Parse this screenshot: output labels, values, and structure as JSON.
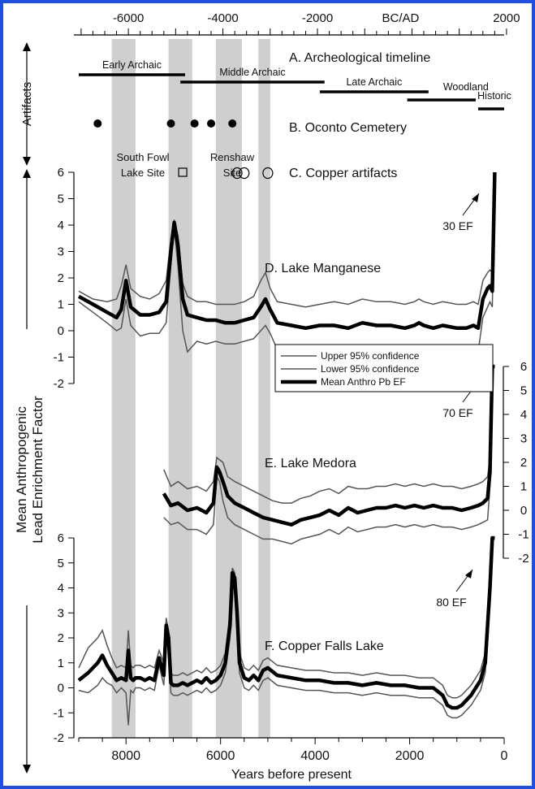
{
  "colors": {
    "border": "#1f4fe0",
    "band": "#cfcfcf",
    "ci_line": "#555555",
    "mean_line": "#000000"
  },
  "chart_data": {
    "type": "line",
    "x_axis_bottom": {
      "label": "Years before present",
      "range": [
        9000,
        0
      ],
      "ticks": [
        8000,
        6000,
        4000,
        2000,
        0
      ]
    },
    "x_axis_top": {
      "label": "BC/AD",
      "ticks": [
        -6000,
        -4000,
        -2000,
        2000
      ]
    },
    "y_axis_label_lines": [
      "Mean Anthropogenic",
      "Lead Enrichment Factor"
    ],
    "side_labels": {
      "artifacts": "Artifacts"
    },
    "shaded_bands_bp": [
      [
        8300,
        7800
      ],
      [
        7100,
        6600
      ],
      [
        6100,
        5550
      ],
      [
        5200,
        4950
      ]
    ],
    "panel_a": {
      "title": "A. Archeological timeline",
      "periods": [
        {
          "label": "Early Archaic",
          "start_bp": 9000,
          "end_bp": 6750
        },
        {
          "label": "Middle Archaic",
          "start_bp": 6850,
          "end_bp": 3800
        },
        {
          "label": "Late Archaic",
          "start_bp": 3900,
          "end_bp": 1600
        },
        {
          "label": "Woodland",
          "start_bp": 2050,
          "end_bp": 600
        },
        {
          "label": "Historic",
          "start_bp": 550,
          "end_bp": 0
        }
      ]
    },
    "panel_b": {
      "title": "B. Oconto Cemetery",
      "dates_bp": [
        8600,
        7050,
        6550,
        6200,
        5750
      ]
    },
    "panel_c": {
      "title": "C. Copper artifacts",
      "sites": [
        {
          "label_lines": [
            "South Fowl",
            "Lake Site"
          ],
          "marker": "square",
          "dates_bp": [
            6800
          ]
        },
        {
          "label_lines": [
            "Renshaw",
            "Site"
          ],
          "marker": "circle",
          "dates_bp": [
            5650,
            5500,
            5000
          ]
        }
      ]
    },
    "legend": {
      "entries": [
        "Upper 95% confidence",
        "Lower 95% confidence",
        "Mean Anthro Pb EF"
      ]
    },
    "panels": [
      {
        "id": "D",
        "title": "D. Lake Manganese",
        "annotation": "30 EF",
        "ylim": [
          -2,
          6
        ],
        "yticks": [
          6,
          5,
          4,
          3,
          2,
          1,
          0,
          -1,
          -2
        ],
        "axis_side": "left",
        "x": [
          9000,
          8700,
          8400,
          8200,
          8100,
          8000,
          7900,
          7700,
          7500,
          7300,
          7150,
          7050,
          6980,
          6900,
          6800,
          6700,
          6500,
          6300,
          6100,
          5900,
          5700,
          5500,
          5300,
          5150,
          5050,
          4950,
          4800,
          4500,
          4200,
          3900,
          3600,
          3300,
          3000,
          2700,
          2400,
          2100,
          1900,
          1800,
          1700,
          1500,
          1300,
          1000,
          800,
          650,
          550,
          450,
          350,
          300,
          250,
          200
        ],
        "mean": [
          1.3,
          1.0,
          0.7,
          0.5,
          0.8,
          1.9,
          0.9,
          0.6,
          0.6,
          0.7,
          1.1,
          3.0,
          4.1,
          3.2,
          1.2,
          0.6,
          0.5,
          0.4,
          0.4,
          0.3,
          0.3,
          0.4,
          0.5,
          0.9,
          1.2,
          0.8,
          0.3,
          0.2,
          0.1,
          0.2,
          0.2,
          0.1,
          0.3,
          0.2,
          0.2,
          0.1,
          0.2,
          0.3,
          0.2,
          0.1,
          0.2,
          0.1,
          0.1,
          0.2,
          0.1,
          1.2,
          1.6,
          1.7,
          1.5,
          6.0
        ],
        "upper": [
          1.5,
          1.2,
          1.1,
          1.2,
          1.7,
          2.5,
          1.6,
          1.3,
          1.2,
          1.4,
          1.9,
          3.5,
          4.2,
          3.6,
          1.8,
          1.3,
          1.1,
          1.1,
          1.0,
          1.0,
          1.0,
          1.1,
          1.3,
          1.9,
          2.2,
          1.6,
          1.1,
          1.0,
          0.9,
          1.0,
          1.1,
          1.0,
          1.2,
          1.1,
          1.1,
          1.0,
          1.1,
          1.2,
          1.1,
          1.0,
          1.1,
          1.0,
          1.0,
          1.1,
          1.0,
          1.9,
          2.2,
          2.3,
          2.2,
          6.0
        ],
        "lower": [
          1.1,
          0.7,
          0.3,
          0.0,
          0.1,
          1.2,
          0.2,
          -0.2,
          -0.1,
          -0.1,
          0.3,
          2.5,
          3.9,
          2.4,
          0.0,
          -0.8,
          -0.4,
          -0.5,
          -0.4,
          -0.5,
          -0.5,
          -0.4,
          -0.3,
          0.0,
          0.2,
          -0.1,
          -0.7,
          -0.8,
          -0.9,
          -0.8,
          -0.7,
          -0.9,
          -0.6,
          -0.8,
          -0.7,
          -0.8,
          -0.7,
          -0.6,
          -0.7,
          -0.8,
          -0.7,
          -0.8,
          -0.8,
          -0.7,
          -0.8,
          0.5,
          0.9,
          1.1,
          0.9,
          6.0
        ]
      },
      {
        "id": "E",
        "title": "E. Lake Medora",
        "annotation": "70 EF",
        "ylim": [
          -2,
          6
        ],
        "yticks": [
          6,
          5,
          4,
          3,
          2,
          1,
          0,
          -1,
          -2
        ],
        "axis_side": "right",
        "x": [
          7200,
          7050,
          6900,
          6700,
          6500,
          6300,
          6150,
          6080,
          6020,
          5950,
          5850,
          5700,
          5500,
          5300,
          5100,
          4900,
          4700,
          4500,
          4300,
          4100,
          3900,
          3700,
          3500,
          3300,
          3100,
          2900,
          2700,
          2500,
          2300,
          2100,
          1900,
          1700,
          1500,
          1300,
          1100,
          900,
          700,
          550,
          450,
          350,
          300,
          250,
          200
        ],
        "mean": [
          0.7,
          0.2,
          0.3,
          0.0,
          0.1,
          -0.1,
          0.3,
          1.8,
          1.6,
          1.2,
          0.6,
          0.3,
          0.1,
          -0.1,
          -0.3,
          -0.4,
          -0.5,
          -0.6,
          -0.4,
          -0.3,
          -0.2,
          0.0,
          -0.2,
          0.1,
          -0.1,
          0.0,
          0.1,
          0.1,
          0.2,
          0.1,
          0.2,
          0.1,
          0.2,
          0.1,
          0.1,
          0.0,
          0.1,
          0.2,
          0.3,
          0.5,
          1.6,
          6.0,
          6.0
        ],
        "upper": [
          1.7,
          1.0,
          1.2,
          0.9,
          1.0,
          0.8,
          1.2,
          2.2,
          2.1,
          2.0,
          1.4,
          1.2,
          1.0,
          0.8,
          0.6,
          0.4,
          0.3,
          0.3,
          0.5,
          0.6,
          0.8,
          0.9,
          0.7,
          1.0,
          0.9,
          0.9,
          1.0,
          1.0,
          1.1,
          1.0,
          1.1,
          1.0,
          1.1,
          1.0,
          1.0,
          0.9,
          1.0,
          1.1,
          1.2,
          1.4,
          2.2,
          6.0,
          6.0
        ],
        "lower": [
          -0.3,
          -0.6,
          -0.5,
          -0.8,
          -0.8,
          -1.0,
          -0.6,
          1.4,
          1.2,
          0.4,
          -0.3,
          -0.6,
          -0.8,
          -1.0,
          -1.2,
          -1.2,
          -1.3,
          -1.4,
          -1.2,
          -1.1,
          -1.0,
          -0.8,
          -1.0,
          -0.7,
          -0.9,
          -0.8,
          -0.7,
          -0.7,
          -0.6,
          -0.7,
          -0.6,
          -0.7,
          -0.6,
          -0.7,
          -0.7,
          -0.8,
          -0.7,
          -0.6,
          -0.5,
          -0.4,
          1.0,
          6.0,
          6.0
        ]
      },
      {
        "id": "F",
        "title": "F. Copper Falls Lake",
        "annotation": "80 EF",
        "ylim": [
          -2,
          6
        ],
        "yticks": [
          6,
          5,
          4,
          3,
          2,
          1,
          0,
          -1,
          -2
        ],
        "axis_side": "left",
        "x": [
          9000,
          8800,
          8600,
          8500,
          8400,
          8300,
          8200,
          8100,
          8000,
          7950,
          7900,
          7850,
          7800,
          7700,
          7600,
          7500,
          7400,
          7300,
          7200,
          7150,
          7100,
          7050,
          7000,
          6900,
          6800,
          6700,
          6600,
          6500,
          6400,
          6300,
          6200,
          6100,
          6000,
          5900,
          5800,
          5750,
          5700,
          5650,
          5600,
          5500,
          5400,
          5300,
          5200,
          5100,
          5000,
          4800,
          4500,
          4200,
          3900,
          3600,
          3300,
          3000,
          2700,
          2400,
          2100,
          1800,
          1500,
          1300,
          1200,
          1100,
          1000,
          900,
          700,
          500,
          400,
          350,
          300,
          250,
          200
        ],
        "mean": [
          0.3,
          0.6,
          1.0,
          1.3,
          0.9,
          0.6,
          0.3,
          0.4,
          0.3,
          1.5,
          0.4,
          0.3,
          0.4,
          0.4,
          0.3,
          0.4,
          0.3,
          1.2,
          0.5,
          2.5,
          2.0,
          0.2,
          0.1,
          0.1,
          0.2,
          0.1,
          0.2,
          0.3,
          0.2,
          0.4,
          0.2,
          0.3,
          0.5,
          1.0,
          2.5,
          4.6,
          4.4,
          3.0,
          1.0,
          0.4,
          0.3,
          0.5,
          0.3,
          0.7,
          0.8,
          0.5,
          0.4,
          0.3,
          0.3,
          0.2,
          0.2,
          0.1,
          0.2,
          0.1,
          0.1,
          0.0,
          0.0,
          -0.3,
          -0.7,
          -0.8,
          -0.8,
          -0.7,
          -0.3,
          0.3,
          1.0,
          2.5,
          4.0,
          6.0,
          6.0
        ],
        "upper": [
          0.8,
          1.6,
          2.0,
          2.3,
          1.7,
          1.2,
          0.8,
          0.9,
          0.8,
          2.3,
          0.9,
          0.8,
          0.9,
          0.9,
          0.8,
          0.9,
          0.8,
          1.5,
          1.0,
          2.8,
          2.3,
          0.6,
          0.5,
          0.5,
          0.6,
          0.5,
          0.6,
          0.7,
          0.6,
          0.8,
          0.6,
          0.7,
          0.9,
          1.4,
          3.0,
          4.8,
          4.6,
          3.4,
          1.4,
          0.8,
          0.7,
          0.9,
          0.7,
          1.1,
          1.2,
          0.9,
          0.8,
          0.7,
          0.7,
          0.6,
          0.6,
          0.5,
          0.6,
          0.5,
          0.5,
          0.4,
          0.4,
          0.1,
          -0.3,
          -0.4,
          -0.4,
          -0.3,
          0.1,
          0.7,
          1.4,
          2.9,
          4.2,
          6.0,
          6.0
        ],
        "lower": [
          -0.1,
          -0.2,
          0.1,
          0.4,
          0.2,
          0.1,
          -0.2,
          0.0,
          -0.2,
          -1.5,
          -0.1,
          -0.2,
          0.0,
          0.0,
          -0.1,
          0.0,
          -0.1,
          0.9,
          0.1,
          2.2,
          1.7,
          -0.2,
          -0.3,
          -0.3,
          -0.2,
          -0.3,
          -0.2,
          -0.1,
          -0.2,
          0.0,
          -0.2,
          -0.1,
          0.1,
          0.6,
          2.0,
          4.4,
          4.2,
          2.6,
          0.6,
          0.0,
          -0.1,
          0.1,
          -0.1,
          0.3,
          0.4,
          0.1,
          0.0,
          -0.1,
          -0.1,
          -0.2,
          -0.2,
          -0.3,
          -0.2,
          -0.3,
          -0.3,
          -0.4,
          -0.4,
          -0.7,
          -1.1,
          -1.2,
          -1.2,
          -1.1,
          -0.7,
          -0.1,
          0.6,
          2.1,
          3.8,
          6.0,
          6.0
        ]
      }
    ]
  }
}
